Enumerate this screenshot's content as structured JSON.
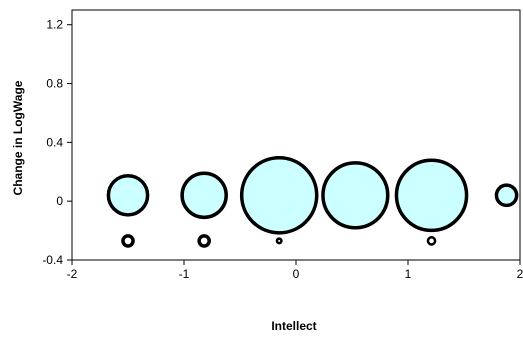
{
  "chart_data": {
    "type": "scatter",
    "variant": "bubble",
    "title": "",
    "xlabel": "Intellect",
    "ylabel": "Change in LogWage",
    "xlim": [
      -2,
      2
    ],
    "ylim": [
      -0.4,
      1.3
    ],
    "x_ticks": [
      -2,
      -1,
      0,
      1,
      2
    ],
    "y_ticks": [
      -0.4,
      0,
      0.4,
      0.8,
      1.2
    ],
    "x_tick_labels": [
      "-2",
      "-1",
      "0",
      "1",
      "2"
    ],
    "y_tick_labels": [
      "-0.4",
      "0",
      "0.4",
      "0.8",
      "1.2"
    ],
    "grid": false,
    "legend": "none",
    "series": [
      {
        "fill": "#ccffff",
        "stroke": "#000000",
        "points": [
          {
            "x": -1.5,
            "y": 0.04,
            "size": 1.5
          },
          {
            "x": -0.82,
            "y": 0.04,
            "size": 1.9
          },
          {
            "x": -0.15,
            "y": 0.04,
            "size": 5.5
          },
          {
            "x": 0.53,
            "y": 0.04,
            "size": 4.1
          },
          {
            "x": 1.21,
            "y": 0.04,
            "size": 4.8
          },
          {
            "x": 1.88,
            "y": 0.04,
            "size": 0.4
          }
        ]
      },
      {
        "fill": "#ffffff",
        "stroke": "#000000",
        "points": [
          {
            "x": -1.5,
            "y": -0.27,
            "size": 0.1
          },
          {
            "x": -0.82,
            "y": -0.27,
            "size": 0.1
          },
          {
            "x": -0.15,
            "y": -0.27,
            "size": 0.02
          },
          {
            "x": 1.21,
            "y": -0.27,
            "size": 0.05
          }
        ]
      }
    ]
  }
}
